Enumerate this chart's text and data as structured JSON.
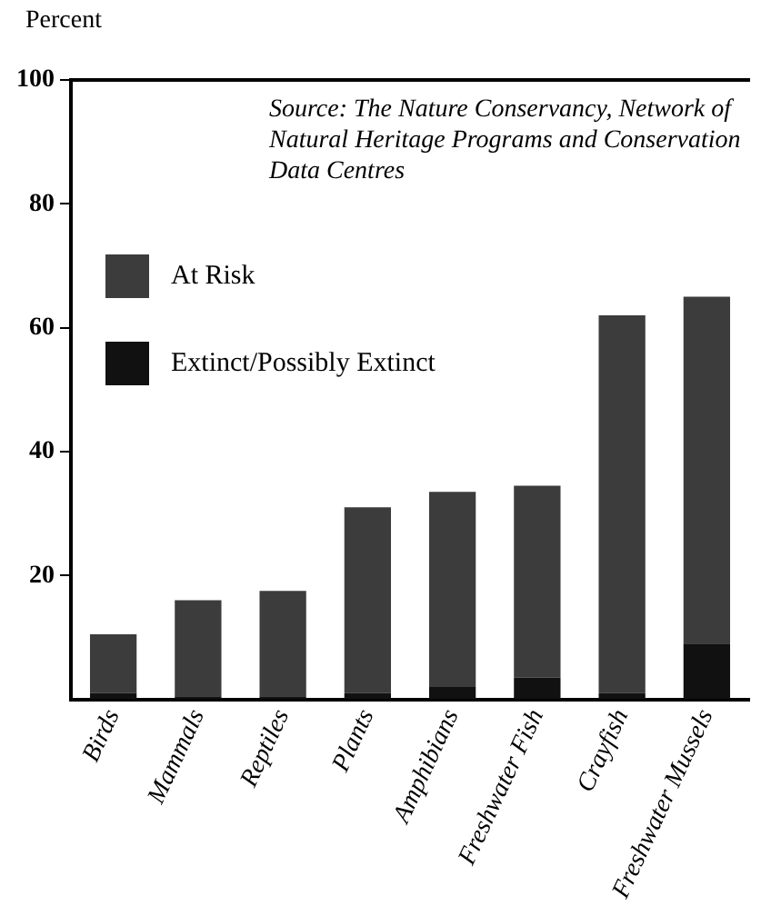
{
  "chart_data": {
    "type": "bar",
    "stacked": true,
    "ylabel": "Percent",
    "categories": [
      "Birds",
      "Mammals",
      "Reptiles",
      "Plants",
      "Amphibians",
      "Freshwater Fish",
      "Crayfish",
      "Freshwater Mussels"
    ],
    "series": [
      {
        "name": "Extinct/Possibly Extinct",
        "color": "#111111",
        "values": [
          1,
          0.5,
          0.5,
          1,
          2,
          3.5,
          1,
          9
        ]
      },
      {
        "name": "At Risk",
        "color": "#3c3c3c",
        "values": [
          9.5,
          15.5,
          17,
          30,
          31.5,
          31,
          61,
          56
        ]
      }
    ],
    "ylim": [
      0,
      100
    ],
    "yticks": [
      20,
      40,
      60,
      80,
      100
    ],
    "grid": false,
    "legend": "top left",
    "annotations": [
      "Source: The Nature Conservancy, Network of Natural Heritage Programs and Conservation Data Centres"
    ]
  }
}
